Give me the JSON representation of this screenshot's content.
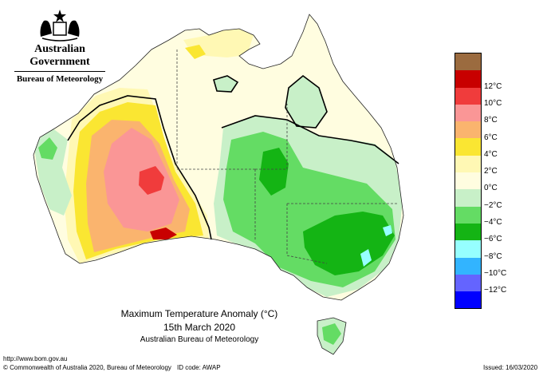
{
  "branding": {
    "gov_title": "Australian Government",
    "bureau_name": "Bureau of Meteorology",
    "crest": "coat-of-arms-logo"
  },
  "map": {
    "title": "Maximum Temperature Anomaly (°C)",
    "date": "15th March 2020",
    "source": "Australian Bureau of Meteorology",
    "region": "Australia"
  },
  "legend": {
    "entries": [
      {
        "label": "",
        "color": "#9b6b3f"
      },
      {
        "label": "12°C",
        "color": "#c80000"
      },
      {
        "label": "10°C",
        "color": "#f03c3c"
      },
      {
        "label": "8°C",
        "color": "#fa9696"
      },
      {
        "label": "6°C",
        "color": "#fab46e"
      },
      {
        "label": "4°C",
        "color": "#fae632"
      },
      {
        "label": "2°C",
        "color": "#fff8b4"
      },
      {
        "label": "0°C",
        "color": "#fffde0"
      },
      {
        "label": "−2°C",
        "color": "#c8f0c8"
      },
      {
        "label": "−4°C",
        "color": "#64dc64"
      },
      {
        "label": "−6°C",
        "color": "#14b414"
      },
      {
        "label": "−8°C",
        "color": "#96ffff"
      },
      {
        "label": "−10°C",
        "color": "#32b4ff"
      },
      {
        "label": "−12°C",
        "color": "#6464ff"
      },
      {
        "label": "",
        "color": "#0000ff"
      }
    ]
  },
  "footer": {
    "url": "http://www.bom.gov.au",
    "copyright": "© Commonwealth of Australia 2020, Bureau of Meteorology",
    "id_code": "ID code: AWAP",
    "issued": "Issued: 16/03/2020"
  }
}
